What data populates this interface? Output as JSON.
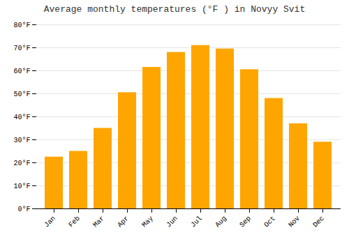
{
  "chart_data": {
    "type": "bar",
    "title": "Average monthly temperatures (°F ) in Novyy Svit",
    "categories": [
      "Jan",
      "Feb",
      "Mar",
      "Apr",
      "May",
      "Jun",
      "Jul",
      "Aug",
      "Sep",
      "Oct",
      "Nov",
      "Dec"
    ],
    "values": [
      22.5,
      25.0,
      35.0,
      50.5,
      61.5,
      68.0,
      71.0,
      69.5,
      60.5,
      48.0,
      37.0,
      29.0
    ],
    "color": "#FFA500",
    "ylim": [
      0,
      80
    ],
    "yticks": [
      {
        "value": 0,
        "label": "0°F"
      },
      {
        "value": 10,
        "label": "10°F"
      },
      {
        "value": 20,
        "label": "20°F"
      },
      {
        "value": 30,
        "label": "30°F"
      },
      {
        "value": 40,
        "label": "40°F"
      },
      {
        "value": 50,
        "label": "50°F"
      },
      {
        "value": 60,
        "label": "60°F"
      },
      {
        "value": 70,
        "label": "70°F"
      },
      {
        "value": 80,
        "label": "80°F"
      }
    ],
    "grid": true
  }
}
